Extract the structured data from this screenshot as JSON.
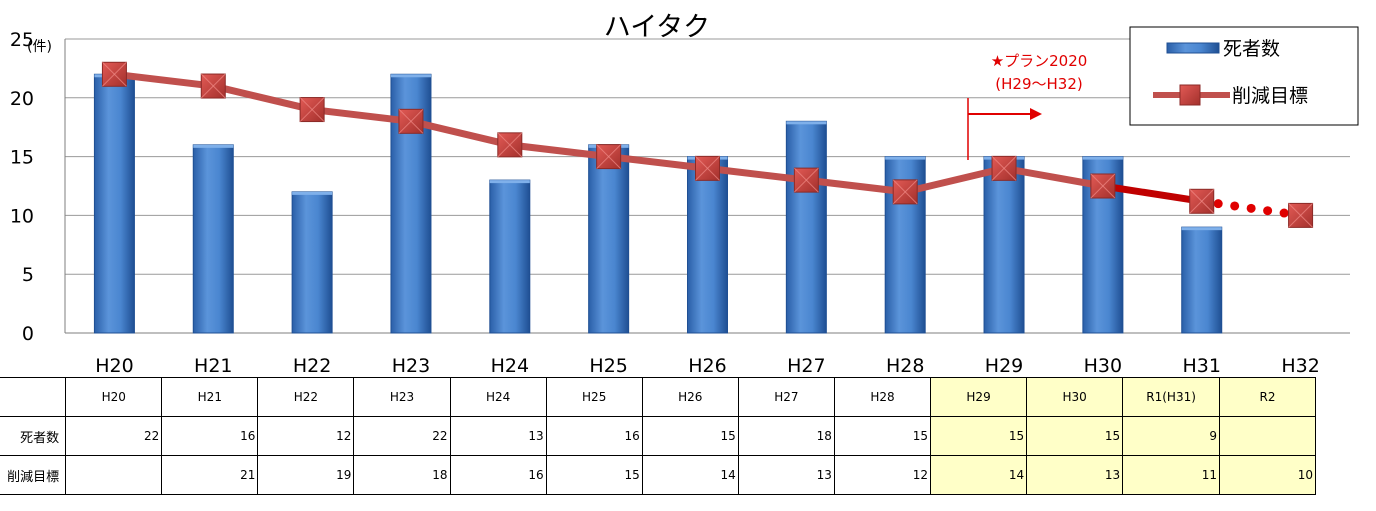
{
  "chart_data": {
    "type": "bar+line",
    "title": "ハイタク",
    "unit_label": "(件)",
    "categories": [
      "H20",
      "H21",
      "H22",
      "H23",
      "H24",
      "H25",
      "H26",
      "H27",
      "H28",
      "H29",
      "H30",
      "H31",
      "H32"
    ],
    "ylim": [
      0,
      25
    ],
    "yticks": [
      0,
      5,
      10,
      15,
      20,
      25
    ],
    "grid": true,
    "legend_position": "top-right",
    "series": [
      {
        "name": "死者数",
        "type": "bar",
        "color": "#3b78c4",
        "values": [
          22,
          16,
          12,
          22,
          13,
          16,
          15,
          18,
          15,
          15,
          15,
          9,
          null
        ]
      },
      {
        "name": "削減目標",
        "type": "line",
        "color": "#c0504d",
        "values": [
          22,
          21,
          19,
          18,
          16,
          15,
          14,
          13,
          12,
          14,
          12.5,
          11.2,
          10
        ]
      }
    ],
    "annotation": {
      "line1": "★プラン2020",
      "line2": "(H29～H32)",
      "color": "#e00000"
    }
  },
  "table": {
    "headers": [
      "",
      "H20",
      "H21",
      "H22",
      "H23",
      "H24",
      "H25",
      "H26",
      "H27",
      "H28",
      "H29",
      "H30",
      "R1(H31)",
      "R2"
    ],
    "rows": [
      {
        "label": "死者数",
        "cells": [
          "22",
          "16",
          "12",
          "22",
          "13",
          "16",
          "15",
          "18",
          "15",
          "15",
          "15",
          "9",
          ""
        ]
      },
      {
        "label": "削減目標",
        "cells": [
          "",
          "21",
          "19",
          "18",
          "16",
          "15",
          "14",
          "13",
          "12",
          "14",
          "13",
          "11",
          "10"
        ]
      }
    ]
  }
}
